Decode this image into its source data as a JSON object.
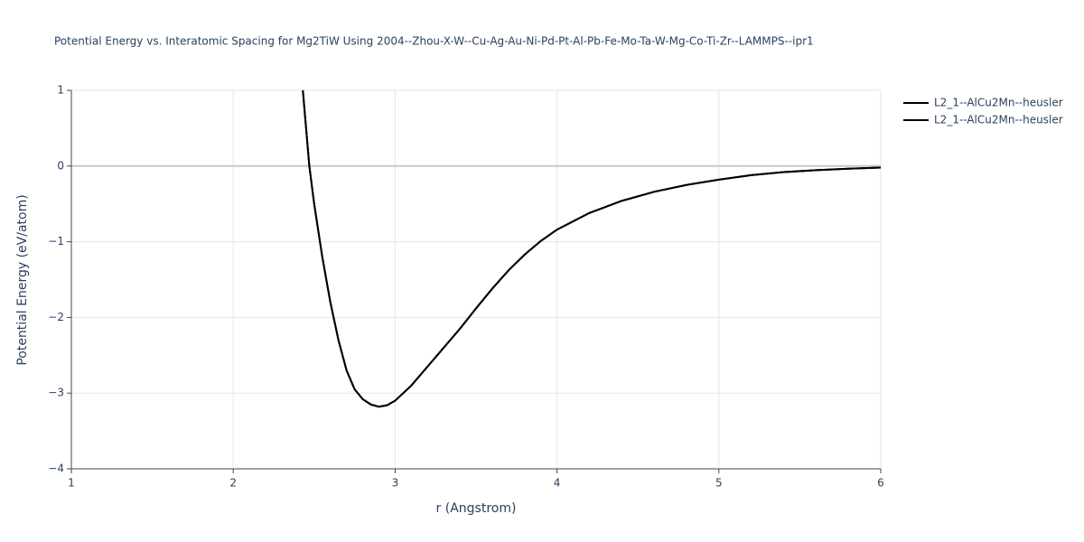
{
  "chart_data": {
    "type": "line",
    "title": "Potential Energy vs. Interatomic Spacing for Mg2TiW Using 2004--Zhou-X-W--Cu-Ag-Au-Ni-Pd-Pt-Al-Pb-Fe-Mo-Ta-W-Mg-Co-Ti-Zr--LAMMPS--ipr1",
    "x_label": "r (Angstrom)",
    "y_label": "Potential Energy (eV/atom)",
    "x": [
      2.43,
      2.45,
      2.47,
      2.5,
      2.55,
      2.6,
      2.65,
      2.7,
      2.75,
      2.8,
      2.85,
      2.9,
      2.95,
      3.0,
      3.1,
      3.2,
      3.3,
      3.4,
      3.5,
      3.6,
      3.7,
      3.8,
      3.9,
      4.0,
      4.2,
      4.4,
      4.6,
      4.8,
      5.0,
      5.2,
      5.4,
      5.6,
      5.8,
      6.0
    ],
    "series": [
      {
        "name": "L2_1--AlCu2Mn--heusler",
        "color": "#000000",
        "values": [
          1.0,
          0.5,
          0.0,
          -0.5,
          -1.2,
          -1.8,
          -2.3,
          -2.7,
          -2.95,
          -3.08,
          -3.15,
          -3.18,
          -3.16,
          -3.1,
          -2.9,
          -2.65,
          -2.4,
          -2.15,
          -1.88,
          -1.62,
          -1.38,
          -1.17,
          -0.99,
          -0.84,
          -0.62,
          -0.46,
          -0.34,
          -0.25,
          -0.18,
          -0.12,
          -0.08,
          -0.055,
          -0.035,
          -0.02
        ]
      },
      {
        "name": "L2_1--AlCu2Mn--heusler",
        "color": "#000000",
        "values": [
          1.0,
          0.5,
          0.0,
          -0.5,
          -1.2,
          -1.8,
          -2.3,
          -2.7,
          -2.95,
          -3.08,
          -3.15,
          -3.18,
          -3.16,
          -3.1,
          -2.9,
          -2.65,
          -2.4,
          -2.15,
          -1.88,
          -1.62,
          -1.38,
          -1.17,
          -0.99,
          -0.84,
          -0.62,
          -0.46,
          -0.34,
          -0.25,
          -0.18,
          -0.12,
          -0.08,
          -0.055,
          -0.035,
          -0.02
        ]
      }
    ],
    "xlim": [
      1,
      6
    ],
    "xticks": [
      1,
      2,
      3,
      4,
      5,
      6
    ],
    "ylim": [
      -4,
      1
    ],
    "yticks": [
      {
        "value": -4,
        "label": "−4"
      },
      {
        "value": -3,
        "label": "−3"
      },
      {
        "value": -2,
        "label": "−2"
      },
      {
        "value": -1,
        "label": "−1"
      },
      0,
      1
    ],
    "grid": true,
    "legend": "right"
  }
}
